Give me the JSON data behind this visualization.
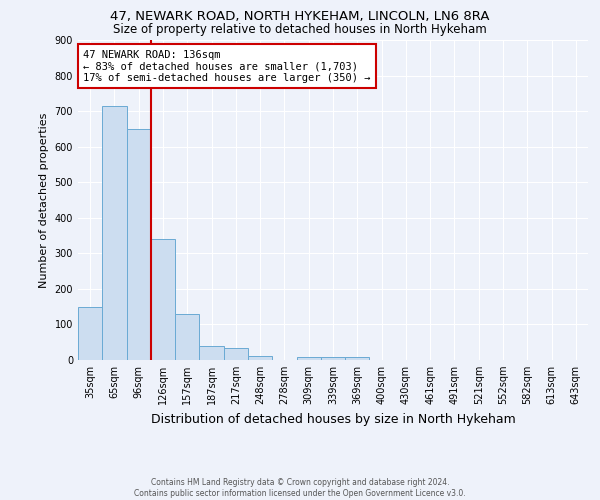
{
  "title1": "47, NEWARK ROAD, NORTH HYKEHAM, LINCOLN, LN6 8RA",
  "title2": "Size of property relative to detached houses in North Hykeham",
  "xlabel": "Distribution of detached houses by size in North Hykeham",
  "ylabel": "Number of detached properties",
  "footer1": "Contains HM Land Registry data © Crown copyright and database right 2024.",
  "footer2": "Contains public sector information licensed under the Open Government Licence v3.0.",
  "bar_labels": [
    "35sqm",
    "65sqm",
    "96sqm",
    "126sqm",
    "157sqm",
    "187sqm",
    "217sqm",
    "248sqm",
    "278sqm",
    "309sqm",
    "339sqm",
    "369sqm",
    "400sqm",
    "430sqm",
    "461sqm",
    "491sqm",
    "521sqm",
    "552sqm",
    "582sqm",
    "613sqm",
    "643sqm"
  ],
  "bar_values": [
    150,
    715,
    650,
    340,
    130,
    40,
    35,
    10,
    0,
    8,
    8,
    8,
    0,
    0,
    0,
    0,
    0,
    0,
    0,
    0,
    0
  ],
  "bar_color": "#ccddf0",
  "bar_edge_color": "#6aaad4",
  "red_line_x": 2.5,
  "red_line_color": "#cc0000",
  "annotation_text": "47 NEWARK ROAD: 136sqm\n← 83% of detached houses are smaller (1,703)\n17% of semi-detached houses are larger (350) →",
  "annotation_box_color": "#ffffff",
  "annotation_box_edge": "#cc0000",
  "ylim": [
    0,
    900
  ],
  "yticks": [
    0,
    100,
    200,
    300,
    400,
    500,
    600,
    700,
    800,
    900
  ],
  "background_color": "#eef2fa",
  "grid_color": "#ffffff",
  "title1_fontsize": 9.5,
  "title2_fontsize": 8.5,
  "xlabel_fontsize": 9,
  "ylabel_fontsize": 8,
  "tick_fontsize": 7,
  "annotation_fontsize": 7.5,
  "footer_fontsize": 5.5
}
